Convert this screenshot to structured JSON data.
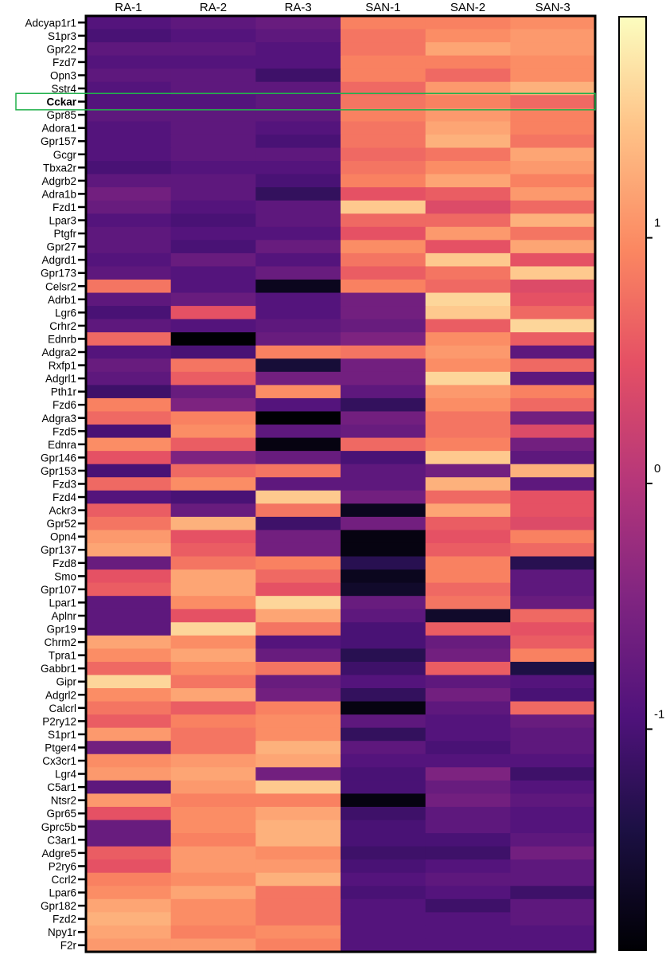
{
  "chart_data": {
    "type": "heatmap",
    "title": "",
    "columns": [
      "RA-1",
      "RA-2",
      "RA-3",
      "SAN-1",
      "SAN-2",
      "SAN-3"
    ],
    "rows": [
      "Adcyap1r1",
      "S1pr3",
      "Gpr22",
      "Fzd7",
      "Opn3",
      "Sstr4",
      "Cckar",
      "Gpr85",
      "Adora1",
      "Gpr157",
      "Gcgr",
      "Tbxa2r",
      "Adgrb2",
      "Adra1b",
      "Fzd1",
      "Lpar3",
      "Ptgfr",
      "Gpr27",
      "Adgrd1",
      "Gpr173",
      "Celsr2",
      "Adrb1",
      "Lgr6",
      "Crhr2",
      "Ednrb",
      "Adgra2",
      "Rxfp1",
      "Adgrl1",
      "Pth1r",
      "Fzd6",
      "Adgra3",
      "Fzd5",
      "Ednra",
      "Gpr146",
      "Gpr153",
      "Fzd3",
      "Fzd4",
      "Ackr3",
      "Gpr52",
      "Opn4",
      "Gpr137",
      "Fzd8",
      "Smo",
      "Gpr107",
      "Lpar1",
      "Aplnr",
      "Gpr19",
      "Chrm2",
      "Tpra1",
      "Gabbr1",
      "Gipr",
      "Adgrl2",
      "Calcrl",
      "P2ry12",
      "S1pr1",
      "Ptger4",
      "Cx3cr1",
      "Lgr4",
      "C5ar1",
      "Ntsr2",
      "Gpr65",
      "Gprc5b",
      "C3ar1",
      "Adgre5",
      "P2ry6",
      "Ccrl2",
      "Lpar6",
      "Gpr182",
      "Fzd2",
      "Npy1r",
      "F2r"
    ],
    "highlighted_row": "Cckar",
    "values": [
      [
        -0.9,
        -0.8,
        -0.7,
        0.9,
        0.9,
        1.0
      ],
      [
        -1.0,
        -0.9,
        -0.8,
        0.8,
        1.0,
        1.1
      ],
      [
        -0.8,
        -0.8,
        -0.9,
        0.8,
        1.2,
        1.1
      ],
      [
        -0.9,
        -0.9,
        -0.9,
        0.9,
        0.9,
        1.0
      ],
      [
        -0.8,
        -0.8,
        -1.1,
        0.9,
        0.7,
        1.0
      ],
      [
        -0.9,
        -0.8,
        -0.8,
        0.7,
        1.1,
        1.3
      ],
      [
        -0.9,
        -0.9,
        -0.8,
        0.8,
        0.9,
        0.7
      ],
      [
        -0.8,
        -0.8,
        -0.8,
        0.9,
        1.1,
        0.9
      ],
      [
        -0.9,
        -0.8,
        -0.9,
        0.8,
        1.2,
        0.9
      ],
      [
        -0.9,
        -0.8,
        -1.0,
        0.8,
        1.3,
        0.8
      ],
      [
        -0.9,
        -0.8,
        -0.8,
        0.7,
        0.8,
        1.2
      ],
      [
        -1.0,
        -0.9,
        -0.9,
        0.8,
        1.0,
        1.1
      ],
      [
        -0.8,
        -0.8,
        -1.0,
        0.9,
        1.2,
        0.9
      ],
      [
        -0.6,
        -0.8,
        -1.2,
        0.5,
        0.6,
        1.1
      ],
      [
        -0.7,
        -0.9,
        -0.8,
        1.5,
        0.4,
        0.7
      ],
      [
        -0.9,
        -1.0,
        -0.8,
        0.7,
        0.7,
        1.3
      ],
      [
        -0.8,
        -0.9,
        -0.9,
        0.5,
        1.1,
        0.8
      ],
      [
        -0.8,
        -1.0,
        -0.7,
        1.0,
        0.5,
        1.2
      ],
      [
        -0.9,
        -0.7,
        -0.9,
        0.8,
        1.5,
        0.5
      ],
      [
        -0.8,
        -0.9,
        -0.7,
        0.6,
        0.8,
        1.5
      ],
      [
        0.8,
        -0.9,
        -1.7,
        0.9,
        0.7,
        0.4
      ],
      [
        -0.8,
        -0.7,
        -0.9,
        -0.6,
        1.6,
        0.5
      ],
      [
        -1.0,
        0.5,
        -0.9,
        -0.6,
        1.5,
        0.7
      ],
      [
        -0.8,
        -0.9,
        -0.8,
        -0.7,
        0.6,
        1.6
      ],
      [
        0.7,
        -1.9,
        -0.7,
        -0.5,
        1.0,
        0.6
      ],
      [
        -0.9,
        -1.0,
        0.9,
        0.8,
        1.1,
        -0.8
      ],
      [
        -0.7,
        0.8,
        -1.5,
        -0.6,
        1.0,
        0.7
      ],
      [
        -0.8,
        0.6,
        -0.6,
        -0.6,
        1.6,
        -0.8
      ],
      [
        -1.1,
        -0.7,
        1.0,
        -0.8,
        1.1,
        0.9
      ],
      [
        0.9,
        -0.5,
        -0.9,
        -1.2,
        1.0,
        0.7
      ],
      [
        0.7,
        0.9,
        -1.9,
        -0.6,
        0.8,
        -0.6
      ],
      [
        -1.0,
        1.0,
        -0.8,
        -0.7,
        0.8,
        0.4
      ],
      [
        1.0,
        0.6,
        -1.8,
        0.7,
        0.9,
        -0.6
      ],
      [
        0.5,
        -0.5,
        -0.7,
        -1.0,
        1.5,
        -0.8
      ],
      [
        -1.0,
        0.7,
        0.8,
        -0.8,
        -0.6,
        1.3
      ],
      [
        0.7,
        1.0,
        -0.8,
        -0.8,
        1.3,
        -0.8
      ],
      [
        -0.9,
        -1.0,
        1.5,
        -0.6,
        0.7,
        0.5
      ],
      [
        0.6,
        -0.7,
        0.8,
        -1.7,
        1.2,
        0.5
      ],
      [
        0.8,
        1.3,
        -1.1,
        -0.6,
        0.6,
        0.4
      ],
      [
        1.1,
        0.5,
        -0.6,
        -1.8,
        0.5,
        0.9
      ],
      [
        1.2,
        0.6,
        -0.6,
        -1.8,
        0.6,
        0.7
      ],
      [
        -0.7,
        0.8,
        0.9,
        -1.3,
        0.9,
        -1.3
      ],
      [
        0.5,
        1.2,
        0.7,
        -1.7,
        0.9,
        -0.8
      ],
      [
        0.6,
        1.2,
        0.5,
        -1.6,
        0.7,
        -0.8
      ],
      [
        -0.8,
        1.0,
        1.6,
        -0.7,
        0.8,
        -0.7
      ],
      [
        -0.8,
        0.5,
        1.2,
        -0.8,
        -1.6,
        0.7
      ],
      [
        -0.8,
        1.6,
        0.8,
        -1.0,
        0.6,
        0.5
      ],
      [
        1.2,
        1.0,
        -0.9,
        -1.0,
        -0.7,
        0.6
      ],
      [
        1.0,
        1.2,
        -0.7,
        -1.3,
        -0.6,
        0.9
      ],
      [
        0.7,
        1.0,
        0.8,
        -1.1,
        0.6,
        -1.4
      ],
      [
        1.6,
        0.8,
        -0.7,
        -0.9,
        -0.8,
        -0.9
      ],
      [
        1.0,
        1.2,
        -0.6,
        -1.2,
        -0.6,
        -1.0
      ],
      [
        0.8,
        0.6,
        0.9,
        -1.8,
        -0.8,
        0.7
      ],
      [
        0.6,
        0.9,
        1.0,
        -0.8,
        -0.9,
        -0.7
      ],
      [
        1.1,
        0.8,
        1.0,
        -1.2,
        -0.9,
        -0.8
      ],
      [
        -0.6,
        0.8,
        1.3,
        -0.8,
        -1.0,
        -0.8
      ],
      [
        1.0,
        1.1,
        1.2,
        -0.9,
        -0.9,
        -0.9
      ],
      [
        1.1,
        1.2,
        -0.6,
        -1.0,
        -0.5,
        -1.1
      ],
      [
        -0.8,
        1.1,
        1.5,
        -1.0,
        -0.7,
        -0.9
      ],
      [
        1.1,
        0.9,
        0.9,
        -1.8,
        -0.6,
        -0.8
      ],
      [
        0.5,
        1.0,
        1.2,
        -1.1,
        -0.8,
        -0.9
      ],
      [
        -0.7,
        1.0,
        1.3,
        -1.0,
        -0.8,
        -0.9
      ],
      [
        -0.7,
        0.9,
        1.3,
        -1.0,
        -1.0,
        -0.8
      ],
      [
        0.6,
        1.1,
        1.0,
        -1.1,
        -1.1,
        -0.6
      ],
      [
        0.5,
        1.1,
        1.1,
        -1.0,
        -0.9,
        -0.8
      ],
      [
        0.9,
        1.0,
        1.3,
        -0.9,
        -0.8,
        -0.8
      ],
      [
        1.0,
        1.2,
        0.8,
        -1.0,
        -0.9,
        -1.1
      ],
      [
        1.2,
        1.0,
        0.8,
        -0.9,
        -1.1,
        -0.8
      ],
      [
        1.3,
        1.0,
        0.8,
        -0.9,
        -0.9,
        -0.8
      ],
      [
        1.2,
        0.9,
        1.0,
        -0.9,
        -0.9,
        -0.9
      ],
      [
        1.1,
        1.1,
        0.9,
        -0.9,
        -0.9,
        -0.9
      ]
    ],
    "colorbar": {
      "colormap": "magma",
      "range": [
        -1.9,
        1.9
      ],
      "ticks": [
        1,
        0,
        -1
      ],
      "tick_labels": [
        "1",
        "0",
        "-1"
      ]
    },
    "grid": false,
    "legend_position": "right"
  },
  "colors": {
    "highlight_box": "#22b14c",
    "frame": "#000000"
  }
}
